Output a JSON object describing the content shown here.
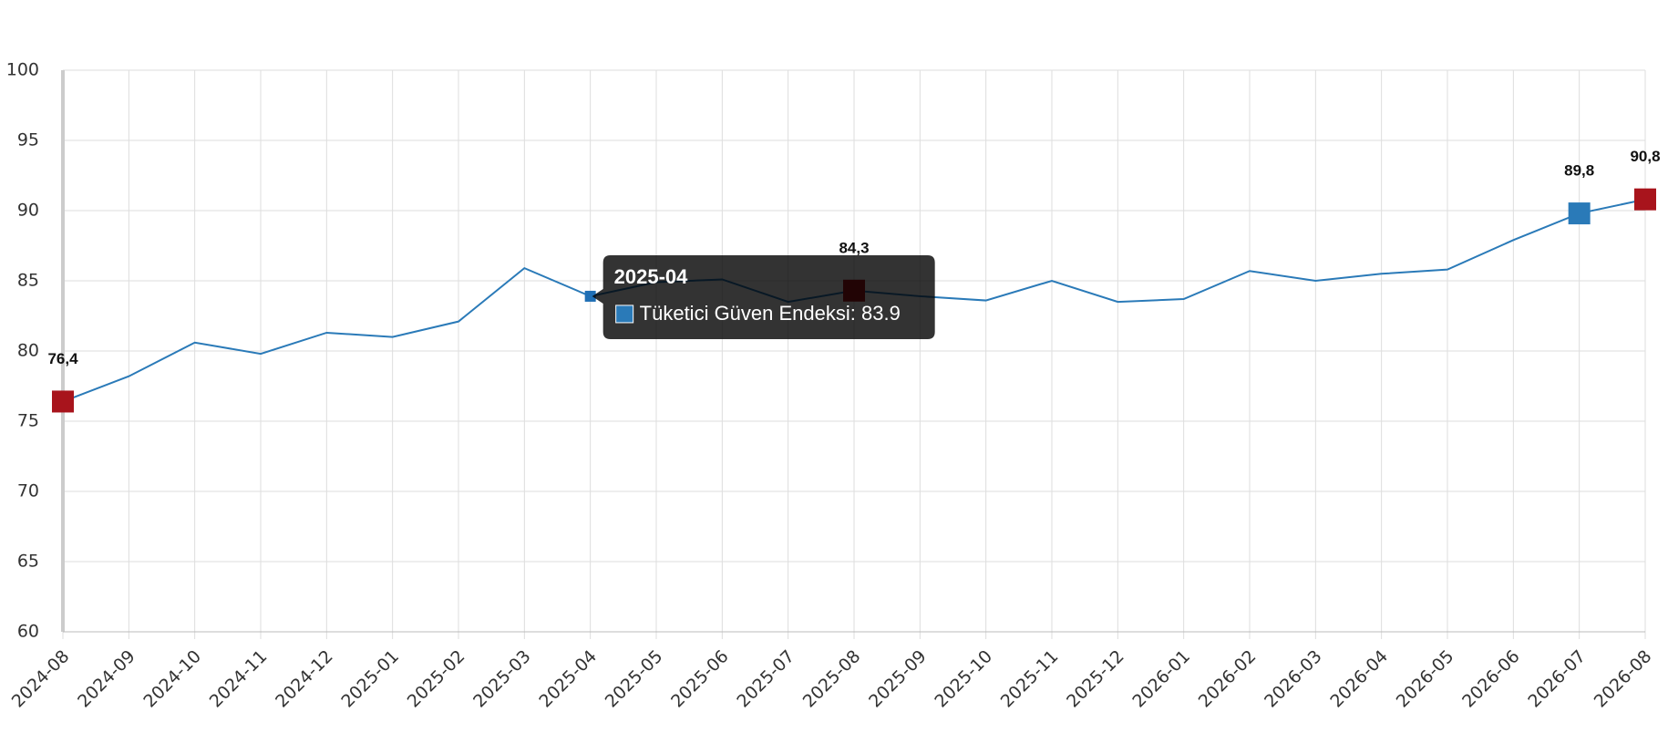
{
  "chart_data": {
    "type": "line",
    "categories": [
      "2024-08",
      "2024-09",
      "2024-10",
      "2024-11",
      "2024-12",
      "2025-01",
      "2025-02",
      "2025-03",
      "2025-04",
      "2025-05",
      "2025-06",
      "2025-07",
      "2025-08",
      "2025-09",
      "2025-10",
      "2025-11",
      "2025-12",
      "2026-01",
      "2026-02",
      "2026-03",
      "2026-04",
      "2026-05",
      "2026-06",
      "2026-07",
      "2026-08"
    ],
    "series": [
      {
        "color": "#2a7ab8",
        "values": [
          76.4,
          78.2,
          80.6,
          79.8,
          81.3,
          81.0,
          82.1,
          85.9,
          83.9,
          84.9,
          85.1,
          83.5,
          84.3,
          83.9,
          83.6,
          85.0,
          83.5,
          83.7,
          85.7,
          85.0,
          85.5,
          85.8,
          87.9,
          89.8,
          90.8
        ],
        "value_labels": [
          "76,4",
          null,
          null,
          null,
          null,
          null,
          null,
          null,
          null,
          null,
          null,
          null,
          "84,3",
          null,
          null,
          null,
          null,
          null,
          null,
          null,
          null,
          null,
          null,
          "89,8",
          "90,8"
        ],
        "marker_colors": [
          "#a8141c",
          null,
          null,
          null,
          null,
          null,
          null,
          null,
          "#1f6fb5",
          null,
          null,
          null,
          "#a8141c",
          null,
          null,
          null,
          null,
          null,
          null,
          null,
          null,
          null,
          null,
          "#2a7ab8",
          "#a8141c"
        ]
      }
    ],
    "ylim": [
      60,
      100
    ],
    "yticks": [
      60,
      65,
      70,
      75,
      80,
      85,
      90,
      95,
      100
    ],
    "grid": true,
    "tooltip": {
      "title": "2025-04",
      "text": "Tüketici Güven Endeksi: 83.9",
      "swatch": "#2a7ab8"
    }
  }
}
